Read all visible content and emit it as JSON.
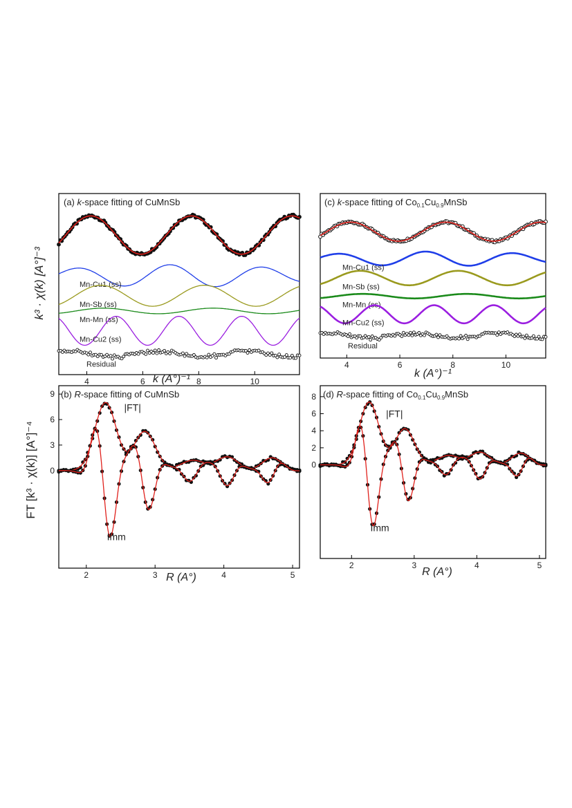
{
  "figure": {
    "colors": {
      "data": "#111111",
      "fit": "#e0201b",
      "mn_cu1": "#1f3ee8",
      "mn_sb": "#9a9a1e",
      "mn_mn": "#1a8a1a",
      "mn_cu2": "#9a1ee0",
      "residual": "#111111"
    }
  },
  "chart_data": [
    {
      "id": "a",
      "type": "line",
      "title": "(a) k-space fitting of CuMnSb",
      "title_prefix": "(a) ",
      "title_var": "k",
      "title_suffix": "-space fitting of CuMnSb",
      "xlabel": "k (A°)⁻¹",
      "ylabel": "k³ · χ(k) [A°]⁻³",
      "xlim": [
        3.0,
        11.6
      ],
      "xticks": [
        4,
        6,
        8,
        10
      ],
      "xticklabels": [
        "4",
        "6",
        "8",
        "10"
      ],
      "data_marker": "filled-circle",
      "series": [
        {
          "name": "Data + fit (k-space)",
          "role": "data+fit",
          "offset": 0,
          "amplitude": 0.82,
          "freq": 3.5,
          "phase": 0.6,
          "noise": 0.12
        },
        {
          "name": "Mn-Cu1 (ss)",
          "label": "Mn-Cu1 (ss)",
          "role": "path",
          "color_key": "mn_cu1",
          "offset": -1.75,
          "amplitude": 0.48,
          "freq": 3.8,
          "phase": 0.9
        },
        {
          "name": "Mn-Sb (ss)",
          "label": "Mn-Sb (ss)",
          "role": "path",
          "color_key": "mn_sb",
          "offset": -2.6,
          "amplitude": 0.45,
          "freq": 3.4,
          "phase": 0.2
        },
        {
          "name": "Mn-Mn (ss)",
          "label": "Mn-Mn (ss)",
          "role": "path",
          "color_key": "mn_mn",
          "offset": -3.25,
          "amplitude": 0.12,
          "freq": 3.2,
          "phase": 0.5
        },
        {
          "name": "Mn-Cu2 (ss)",
          "label": "Mn-Cu2 (ss)",
          "role": "path",
          "color_key": "mn_cu2",
          "offset": -4.1,
          "amplitude": 0.62,
          "freq": 5.6,
          "phase": 0.0
        },
        {
          "name": "Residual",
          "label": "Residual",
          "role": "residual",
          "offset": -5.1,
          "amplitude": 0.12,
          "freq": 4.0,
          "phase": 1.0
        }
      ],
      "ylim": [
        -5.8,
        1.6
      ]
    },
    {
      "id": "b",
      "type": "line",
      "title": "(b) R-space fitting of CuMnSb",
      "title_prefix": "(b) ",
      "title_var": "R",
      "title_suffix": "-space fitting of CuMnSb",
      "xlabel": "R (A°)",
      "ylabel": "FT [k³ · χ(k)] [A°]⁻⁴",
      "xlim": [
        1.6,
        5.1
      ],
      "ylim": [
        -11,
        9.5
      ],
      "xticks": [
        2,
        3,
        4,
        5
      ],
      "xticklabels": [
        "2",
        "3",
        "4",
        "5"
      ],
      "yticks": [
        0,
        3,
        6,
        9
      ],
      "yticklabels": [
        "0",
        "3",
        "6",
        "9"
      ],
      "annotations": [
        {
          "text": "|FT|",
          "x": 2.55,
          "y": 7.0
        },
        {
          "text": "Imm",
          "x": 2.3,
          "y": -8.2
        }
      ],
      "series": [
        {
          "name": "|FT|",
          "role": "magnitude"
        },
        {
          "name": "Imm",
          "role": "imaginary"
        }
      ]
    },
    {
      "id": "c",
      "type": "line",
      "title": "(c) k-space fitting of Co0.1Cu0.9MnSb",
      "title_prefix": "(c) ",
      "title_var": "k",
      "title_suffix": "-space fitting of Co",
      "title_s1": "0.1",
      "title_mid": "Cu",
      "title_s2": "0.9",
      "title_end": "MnSb",
      "xlabel": "k (A°)⁻¹",
      "xlim": [
        3.0,
        11.5
      ],
      "xticks": [
        4,
        6,
        8,
        10
      ],
      "xticklabels": [
        "4",
        "6",
        "8",
        "10"
      ],
      "data_marker": "open-circle",
      "series": [
        {
          "name": "Data + fit (k-space)",
          "role": "data+fit",
          "offset": 0,
          "amplitude": 0.42,
          "freq": 3.5,
          "phase": 0.6,
          "noise": 0.1
        },
        {
          "name": "Mn-Cu1 (ss)",
          "label": "Mn-Cu1 (ss)",
          "role": "path",
          "color_key": "mn_cu1",
          "offset": -1.2,
          "amplitude": 0.32,
          "freq": 3.8,
          "phase": 0.9
        },
        {
          "name": "Mn-Sb (ss)",
          "label": "Mn-Sb (ss)",
          "role": "path",
          "color_key": "mn_sb",
          "offset": -2.05,
          "amplitude": 0.32,
          "freq": 3.4,
          "phase": 0.2
        },
        {
          "name": "Mn-Mn (ss)",
          "label": "Mn-Mn (ss)",
          "role": "path",
          "color_key": "mn_mn",
          "offset": -2.85,
          "amplitude": 0.1,
          "freq": 3.2,
          "phase": 0.5
        },
        {
          "name": "Mn-Cu2 (ss)",
          "label": "Mn-Cu2 (ss)",
          "role": "path",
          "color_key": "mn_cu2",
          "offset": -3.65,
          "amplitude": 0.4,
          "freq": 5.6,
          "phase": 0.0
        },
        {
          "name": "Residual",
          "label": "Residual",
          "role": "residual",
          "offset": -4.6,
          "amplitude": 0.1,
          "freq": 4.0,
          "phase": 1.0
        }
      ],
      "ylim": [
        -5.4,
        1.5
      ]
    },
    {
      "id": "d",
      "type": "line",
      "title": "(d) R-space fitting of Co0.1Cu0.9MnSb",
      "title_prefix": "(d) ",
      "title_var": "R",
      "title_suffix": "-space fitting of Co",
      "title_s1": "0.1",
      "title_mid": "Cu",
      "title_s2": "0.9",
      "title_end": "MnSb",
      "xlabel": "R (A°)",
      "xlim": [
        1.5,
        5.1
      ],
      "ylim": [
        -10.5,
        8.8
      ],
      "xticks": [
        2,
        3,
        4,
        5
      ],
      "xticklabels": [
        "2",
        "3",
        "4",
        "5"
      ],
      "yticks": [
        0,
        2,
        4,
        6,
        8
      ],
      "yticklabels": [
        "0",
        "2",
        "4",
        "6",
        "8"
      ],
      "annotations": [
        {
          "text": "|FT|",
          "x": 2.55,
          "y": 5.6
        },
        {
          "text": "Imm",
          "x": 2.3,
          "y": -7.8
        }
      ],
      "series": [
        {
          "name": "|FT|",
          "role": "magnitude"
        },
        {
          "name": "Imm",
          "role": "imaginary"
        }
      ]
    }
  ]
}
